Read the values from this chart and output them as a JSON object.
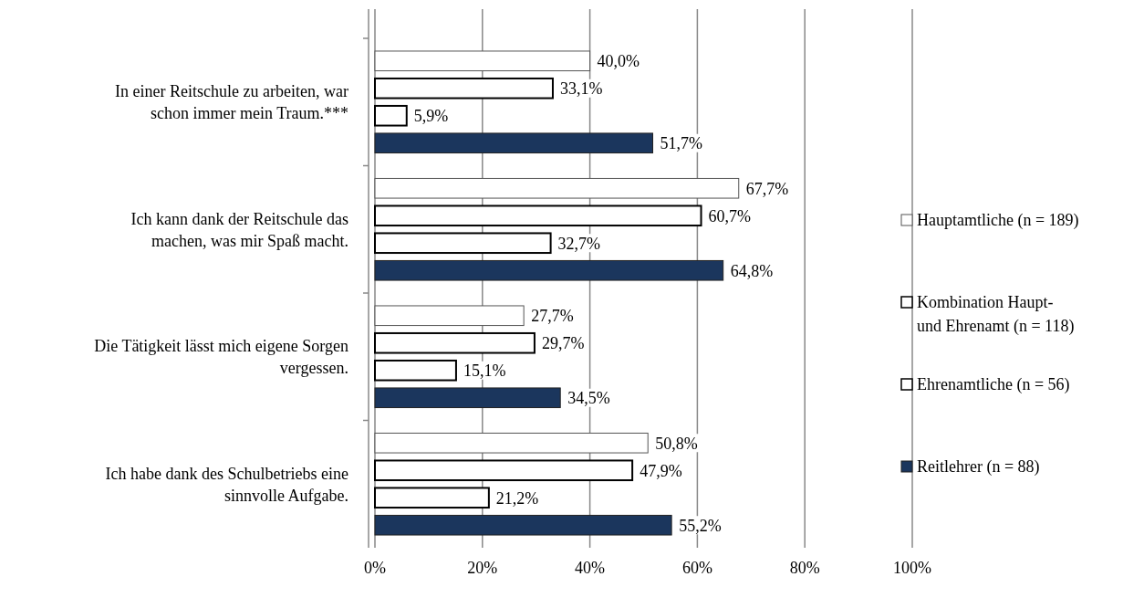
{
  "chart_data": {
    "type": "bar",
    "orientation": "horizontal",
    "categories": [
      "In einer Reitschule zu arbeiten, war schon immer mein Traum.***",
      "Ich kann dank der Reitschule das machen, was mir Spaß macht.",
      "Die Tätigkeit lässt mich eigene Sorgen vergessen.",
      "Ich habe dank des Schulbetriebs eine sinnvolle Aufgabe."
    ],
    "series": [
      {
        "name": "Hauptamtliche (n = 189)",
        "color": "#ffffff",
        "values": [
          40.0,
          67.7,
          27.7,
          50.8
        ],
        "value_labels": [
          "40,0%",
          "67,7%",
          "27,7%",
          "50,8%"
        ]
      },
      {
        "name": "Kombination Haupt- und Ehrenamt (n = 118)",
        "color": "#ffffff",
        "values": [
          33.1,
          60.7,
          29.7,
          47.9
        ],
        "value_labels": [
          "33,1%",
          "60,7%",
          "29,7%",
          "47,9%"
        ]
      },
      {
        "name": "Ehrenamtliche (n = 56)",
        "color": "#ffffff",
        "values": [
          5.9,
          32.7,
          15.1,
          21.2
        ],
        "value_labels": [
          "5,9%",
          "32,7%",
          "15,1%",
          "21,2%"
        ]
      },
      {
        "name": "Reitlehrer (n = 88)",
        "color": "#1b365d",
        "values": [
          51.7,
          64.8,
          34.5,
          55.2
        ],
        "value_labels": [
          "51,7%",
          "64,8%",
          "34,5%",
          "55,2%"
        ]
      }
    ],
    "xlim": [
      0,
      100
    ],
    "xticks": [
      {
        "value": 0,
        "label": "0%"
      },
      {
        "value": 20,
        "label": "20%"
      },
      {
        "value": 40,
        "label": "40%"
      },
      {
        "value": 60,
        "label": "60%"
      },
      {
        "value": 80,
        "label": "80%"
      },
      {
        "value": 100,
        "label": "100%"
      }
    ],
    "grid": "x",
    "legend": "right"
  }
}
